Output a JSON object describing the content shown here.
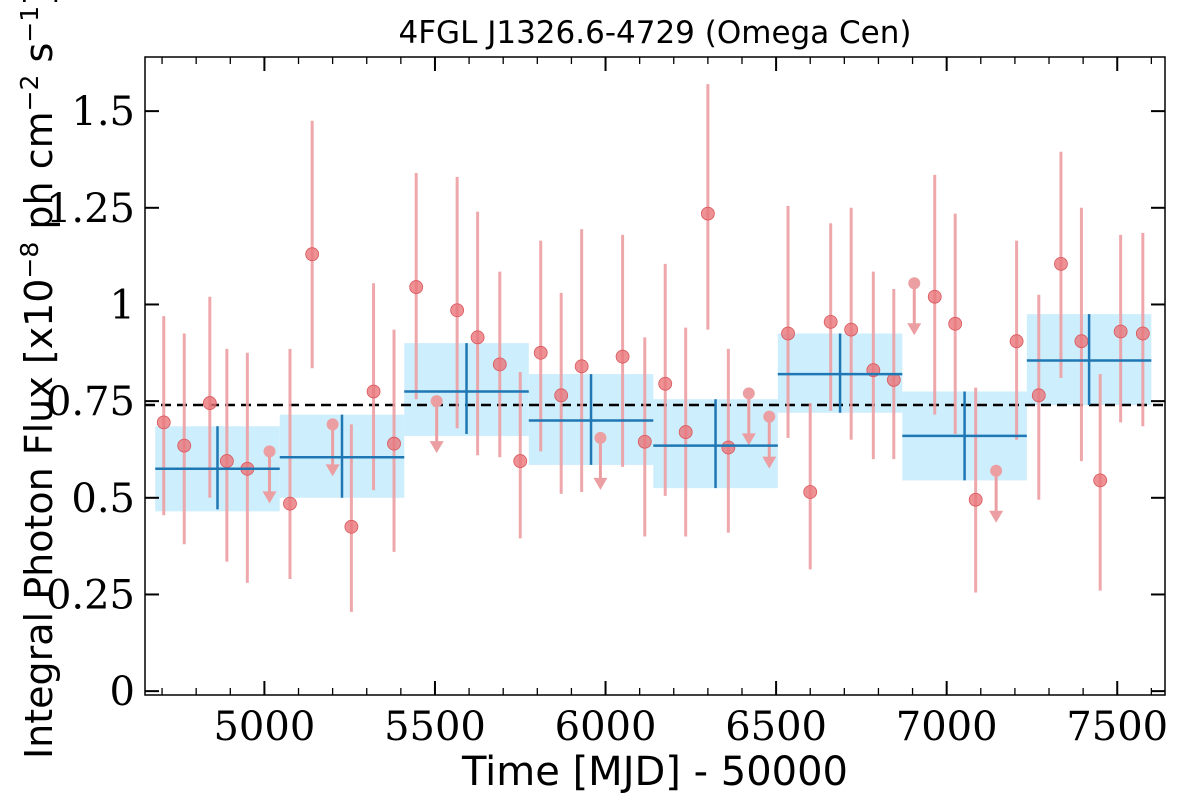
{
  "chart_data": {
    "type": "scatter",
    "title": "4FGL J1326.6-4729 (Omega Cen)",
    "xlabel": "Time [MJD] - 50000",
    "ylabel": {
      "prefix": "Integral Photon Flux [x10",
      "exp1": "−8",
      "mid": " ph cm",
      "exp2": "−2",
      "mid2": " s",
      "exp3": "−1",
      "suffix": "]"
    },
    "xlim": [
      4650,
      7640
    ],
    "ylim": [
      -0.01,
      1.64
    ],
    "xticks": [
      5000,
      5500,
      6000,
      6500,
      7000,
      7500
    ],
    "yticks": [
      {
        "v": 0,
        "label": "0"
      },
      {
        "v": 0.25,
        "label": "0.25"
      },
      {
        "v": 0.5,
        "label": "0.5"
      },
      {
        "v": 0.75,
        "label": "0.75"
      },
      {
        "v": 1.0,
        "label": "1"
      },
      {
        "v": 1.25,
        "label": "1.25"
      },
      {
        "v": 1.5,
        "label": "1.5"
      }
    ],
    "mean_flux": 0.74,
    "colors": {
      "points": "#e8767b",
      "errorbars": "#ec9fa3",
      "bins": "#1f77b4",
      "bin_fill": "#cdeefc",
      "mean_line": "#000000"
    },
    "points": [
      {
        "x": 4705,
        "y": 0.695,
        "lo": 0.455,
        "hi": 0.97
      },
      {
        "x": 4765,
        "y": 0.635,
        "lo": 0.38,
        "hi": 0.925
      },
      {
        "x": 4840,
        "y": 0.745,
        "lo": 0.5,
        "hi": 1.02
      },
      {
        "x": 4890,
        "y": 0.595,
        "lo": 0.335,
        "hi": 0.885
      },
      {
        "x": 4950,
        "y": 0.575,
        "lo": 0.28,
        "hi": 0.875
      },
      {
        "x": 5075,
        "y": 0.485,
        "lo": 0.29,
        "hi": 0.885
      },
      {
        "x": 5140,
        "y": 1.13,
        "lo": 0.835,
        "hi": 1.475
      },
      {
        "x": 5255,
        "y": 0.425,
        "lo": 0.205,
        "hi": 0.69
      },
      {
        "x": 5320,
        "y": 0.775,
        "lo": 0.52,
        "hi": 1.055
      },
      {
        "x": 5380,
        "y": 0.64,
        "lo": 0.36,
        "hi": 0.935
      },
      {
        "x": 5445,
        "y": 1.045,
        "lo": 0.755,
        "hi": 1.34
      },
      {
        "x": 5565,
        "y": 0.985,
        "lo": 0.68,
        "hi": 1.33
      },
      {
        "x": 5625,
        "y": 0.915,
        "lo": 0.61,
        "hi": 1.24
      },
      {
        "x": 5690,
        "y": 0.845,
        "lo": 0.605,
        "hi": 1.085
      },
      {
        "x": 5750,
        "y": 0.595,
        "lo": 0.395,
        "hi": 0.825
      },
      {
        "x": 5810,
        "y": 0.875,
        "lo": 0.62,
        "hi": 1.165
      },
      {
        "x": 5870,
        "y": 0.765,
        "lo": 0.51,
        "hi": 1.03
      },
      {
        "x": 5930,
        "y": 0.84,
        "lo": 0.515,
        "hi": 1.195
      },
      {
        "x": 6050,
        "y": 0.865,
        "lo": 0.58,
        "hi": 1.18
      },
      {
        "x": 6115,
        "y": 0.645,
        "lo": 0.4,
        "hi": 0.915
      },
      {
        "x": 6175,
        "y": 0.795,
        "lo": 0.505,
        "hi": 1.105
      },
      {
        "x": 6235,
        "y": 0.67,
        "lo": 0.4,
        "hi": 0.94
      },
      {
        "x": 6300,
        "y": 1.235,
        "lo": 0.935,
        "hi": 1.57
      },
      {
        "x": 6360,
        "y": 0.63,
        "lo": 0.41,
        "hi": 0.885
      },
      {
        "x": 6535,
        "y": 0.925,
        "lo": 0.655,
        "hi": 1.255
      },
      {
        "x": 6600,
        "y": 0.515,
        "lo": 0.315,
        "hi": 0.745
      },
      {
        "x": 6660,
        "y": 0.955,
        "lo": 0.725,
        "hi": 1.21
      },
      {
        "x": 6720,
        "y": 0.935,
        "lo": 0.65,
        "hi": 1.25
      },
      {
        "x": 6785,
        "y": 0.83,
        "lo": 0.6,
        "hi": 1.085
      },
      {
        "x": 6845,
        "y": 0.805,
        "lo": 0.6,
        "hi": 1.04
      },
      {
        "x": 6965,
        "y": 1.02,
        "lo": 0.715,
        "hi": 1.335
      },
      {
        "x": 7025,
        "y": 0.95,
        "lo": 0.665,
        "hi": 1.235
      },
      {
        "x": 7085,
        "y": 0.495,
        "lo": 0.255,
        "hi": 0.785
      },
      {
        "x": 7205,
        "y": 0.905,
        "lo": 0.65,
        "hi": 1.165
      },
      {
        "x": 7270,
        "y": 0.765,
        "lo": 0.495,
        "hi": 1.025
      },
      {
        "x": 7335,
        "y": 1.105,
        "lo": 0.81,
        "hi": 1.395
      },
      {
        "x": 7395,
        "y": 0.905,
        "lo": 0.595,
        "hi": 1.25
      },
      {
        "x": 7450,
        "y": 0.545,
        "lo": 0.26,
        "hi": 0.82
      },
      {
        "x": 7510,
        "y": 0.93,
        "lo": 0.695,
        "hi": 1.18
      },
      {
        "x": 7575,
        "y": 0.925,
        "lo": 0.685,
        "hi": 1.185
      }
    ],
    "upper_limits": [
      {
        "x": 5015,
        "y": 0.62
      },
      {
        "x": 5200,
        "y": 0.69
      },
      {
        "x": 5505,
        "y": 0.75
      },
      {
        "x": 5985,
        "y": 0.655
      },
      {
        "x": 6420,
        "y": 0.77
      },
      {
        "x": 6480,
        "y": 0.71
      },
      {
        "x": 6905,
        "y": 1.055
      },
      {
        "x": 7145,
        "y": 0.57
      }
    ],
    "bins": [
      {
        "x0": 4680,
        "x1": 5045,
        "y": 0.575,
        "lo": 0.47,
        "hi": 0.685,
        "ylo": 0.465,
        "yhi": 0.685
      },
      {
        "x0": 5045,
        "x1": 5410,
        "y": 0.605,
        "lo": 0.5,
        "hi": 0.715,
        "ylo": 0.5,
        "yhi": 0.715
      },
      {
        "x0": 5410,
        "x1": 5775,
        "y": 0.775,
        "lo": 0.665,
        "hi": 0.9,
        "ylo": 0.66,
        "yhi": 0.9
      },
      {
        "x0": 5775,
        "x1": 6140,
        "y": 0.7,
        "lo": 0.585,
        "hi": 0.82,
        "ylo": 0.585,
        "yhi": 0.82
      },
      {
        "x0": 6140,
        "x1": 6505,
        "y": 0.635,
        "lo": 0.525,
        "hi": 0.755,
        "ylo": 0.525,
        "yhi": 0.755
      },
      {
        "x0": 6505,
        "x1": 6870,
        "y": 0.82,
        "lo": 0.72,
        "hi": 0.925,
        "ylo": 0.72,
        "yhi": 0.925
      },
      {
        "x0": 6870,
        "x1": 7235,
        "y": 0.66,
        "lo": 0.545,
        "hi": 0.775,
        "ylo": 0.545,
        "yhi": 0.775
      },
      {
        "x0": 7235,
        "x1": 7600,
        "y": 0.855,
        "lo": 0.74,
        "hi": 0.975,
        "ylo": 0.74,
        "yhi": 0.975
      }
    ]
  }
}
